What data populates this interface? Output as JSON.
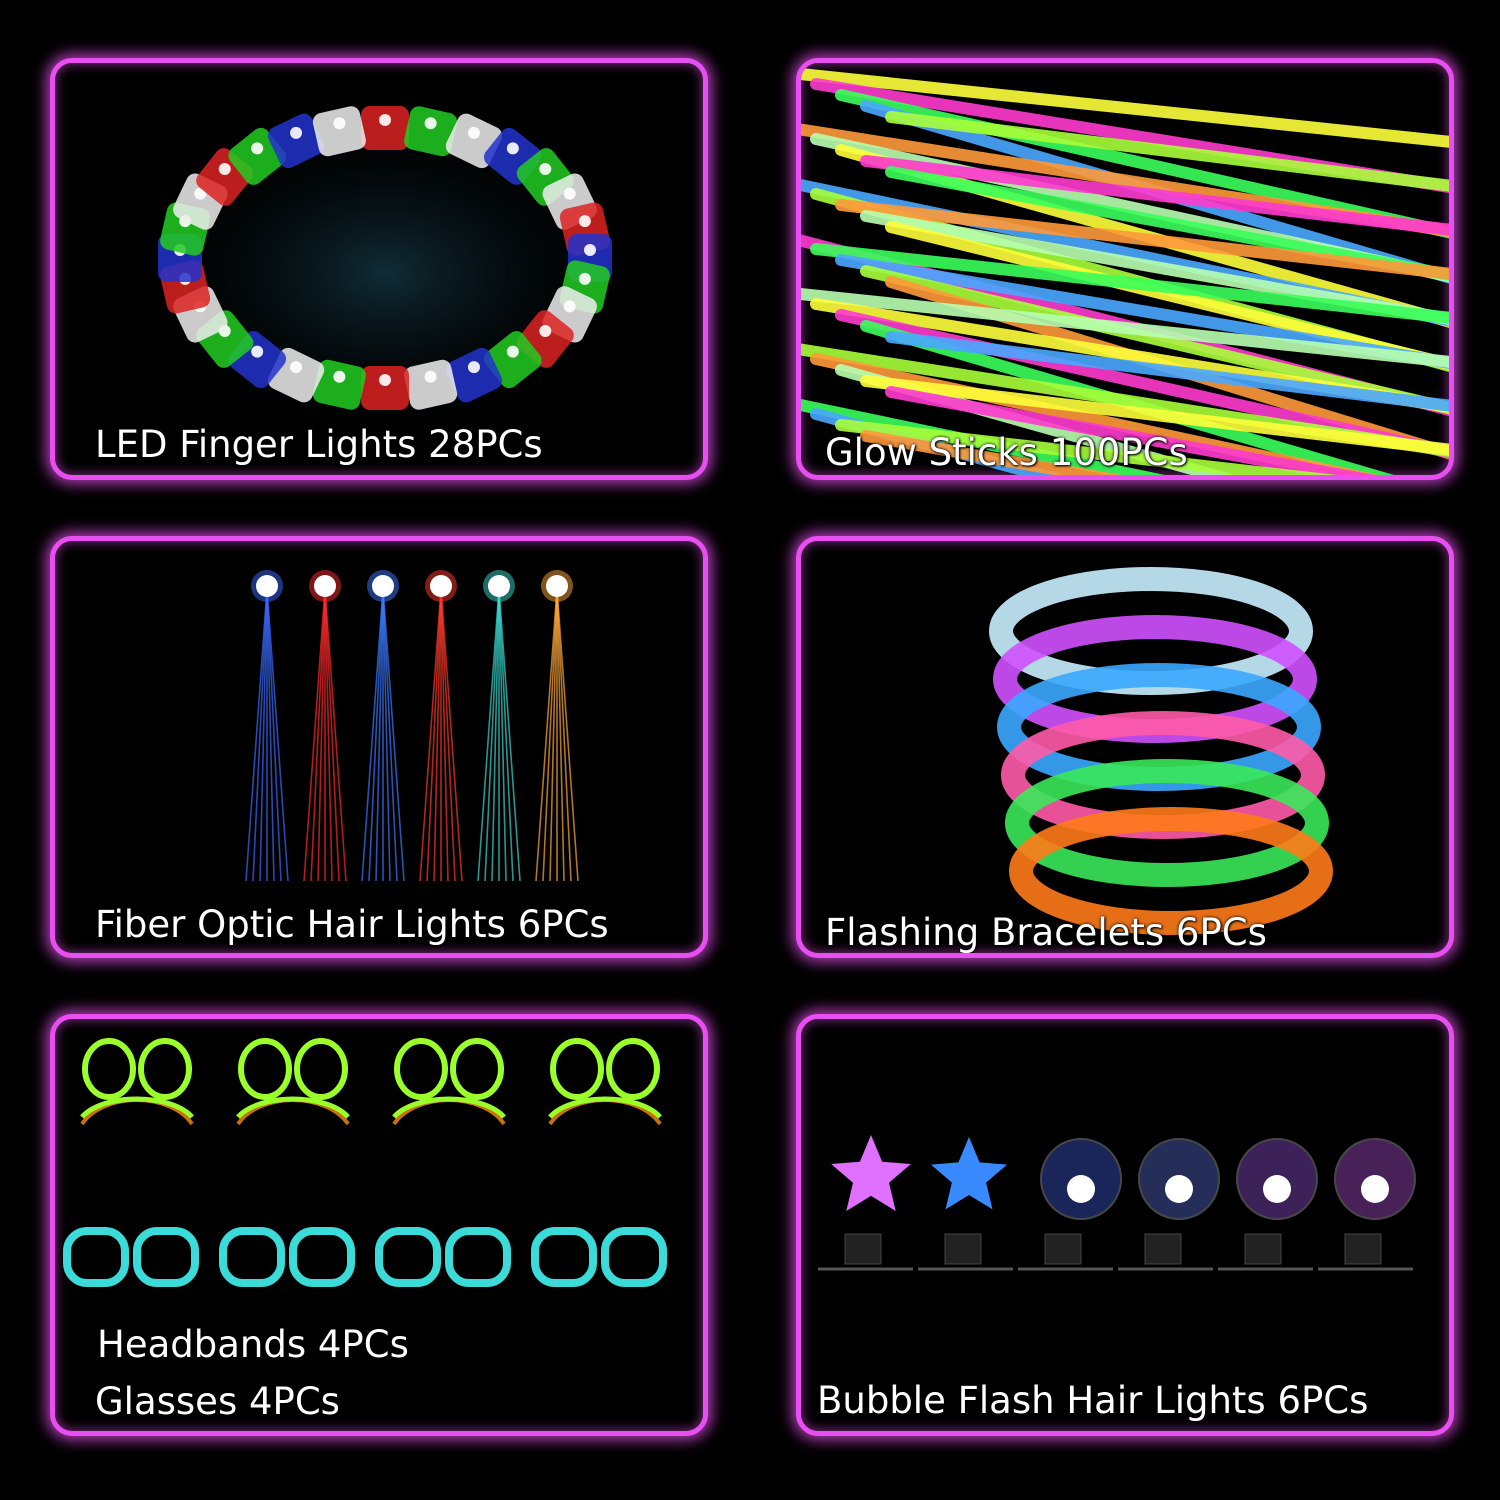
{
  "panels": [
    {
      "caption": "LED Finger Lights 28PCs"
    },
    {
      "caption": "Glow Sticks 100PCs"
    },
    {
      "caption": "Fiber Optic Hair Lights 6PCs"
    },
    {
      "caption": "Flashing Bracelets 6PCs"
    },
    {
      "caption_line1": "Headbands 4PCs",
      "caption_line2": "Glasses 4PCs"
    },
    {
      "caption": "Bubble Flash Hair Lights 6PCs"
    }
  ],
  "colors": {
    "border": "#e84ff0",
    "background": "#000000",
    "text": "#ffffff"
  }
}
